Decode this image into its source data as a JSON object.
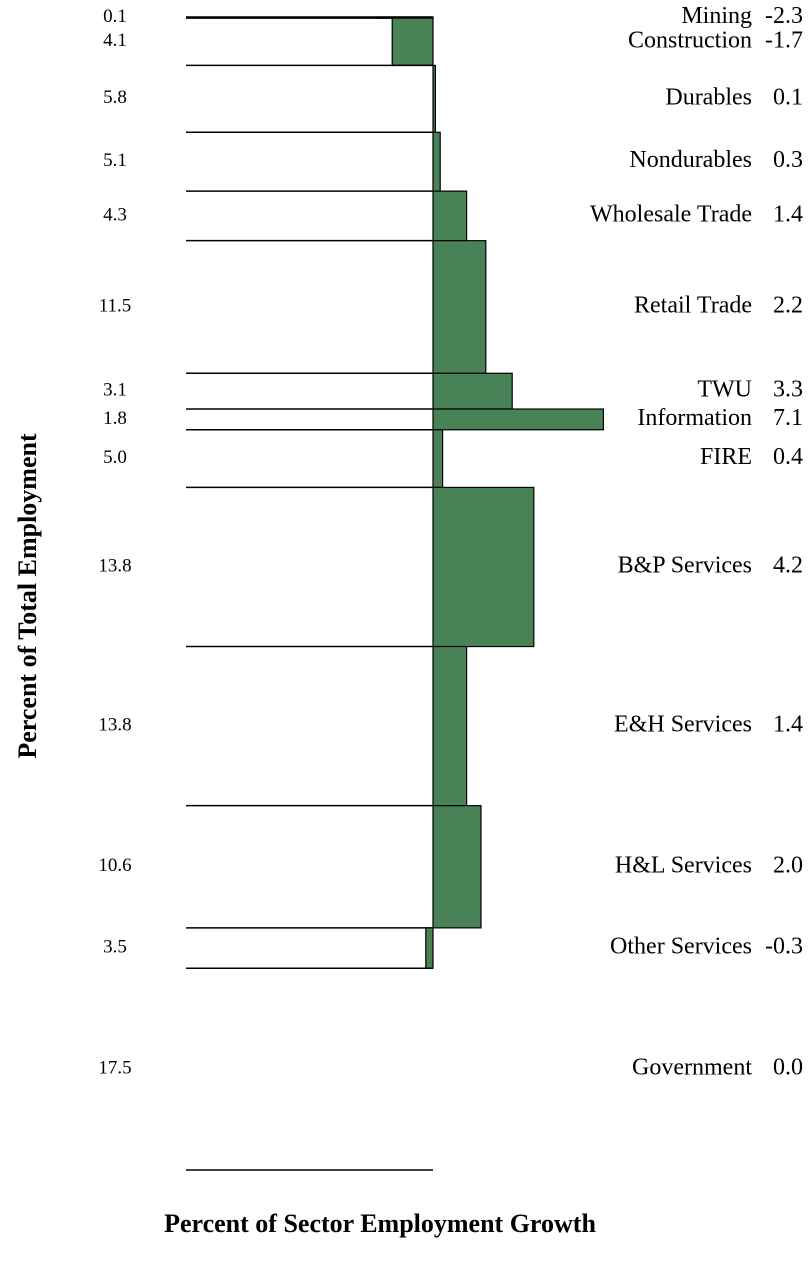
{
  "chart_data": {
    "type": "variable-width-bar",
    "x_label": "Percent of Sector Employment Growth",
    "y_label": "Percent of Total Employment",
    "color": "#4a8258",
    "categories": [
      "Mining",
      "Construction",
      "Durables",
      "Nondurables",
      "Wholesale Trade",
      "Retail Trade",
      "TWU",
      "Information",
      "FIRE",
      "B&P Services",
      "E&H Services",
      "H&L Services",
      "Other Services",
      "Government"
    ],
    "values": [
      -2.3,
      -1.7,
      0.1,
      0.3,
      1.4,
      2.2,
      3.3,
      7.1,
      0.4,
      4.2,
      1.4,
      2.0,
      -0.3,
      0.0
    ],
    "value_labels": [
      "-2.3",
      "-1.7",
      "0.1",
      "0.3",
      "1.4",
      "2.2",
      "3.3",
      "7.1",
      "0.4",
      "4.2",
      "1.4",
      "2.0",
      "-0.3",
      "0.0"
    ],
    "widths": [
      0.1,
      4.1,
      5.8,
      5.1,
      4.3,
      11.5,
      3.1,
      1.8,
      5.0,
      13.8,
      13.8,
      10.6,
      3.5,
      17.5
    ],
    "width_labels": [
      "0.1",
      "4.1",
      "5.8",
      "5.1",
      "4.3",
      "11.5",
      "3.1",
      "1.8",
      "5.0",
      "13.8",
      "13.8",
      "10.6",
      "3.5",
      "17.5"
    ]
  }
}
